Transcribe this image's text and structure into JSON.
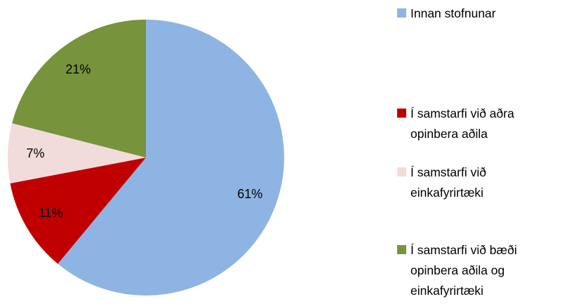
{
  "chart_data": {
    "type": "pie",
    "categories": [
      "Innan stofnunar",
      "Í samstarfi við aðra opinbera aðila",
      "Í samstarfi við einkafyrirtæki",
      "Í samstarfi við bæði opinbera aðila og einkafyrirtæki"
    ],
    "values": [
      61,
      11,
      7,
      21
    ],
    "value_labels": [
      "61%",
      "11%",
      "7%",
      "21%"
    ],
    "colors": [
      "#8eb4e3",
      "#c00000",
      "#f2dcdb",
      "#77933c"
    ],
    "legend": "right"
  }
}
